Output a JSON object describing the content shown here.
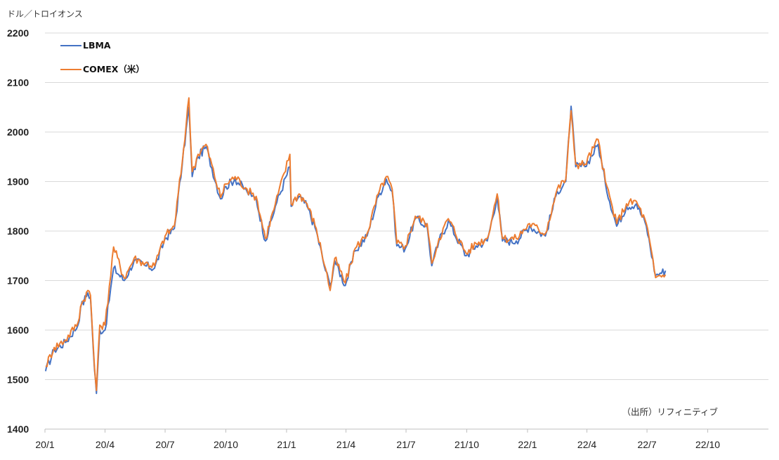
{
  "chart_data": {
    "type": "line",
    "unit_label": "ドル／トロイオンス",
    "source": "（出所）リフィニティブ",
    "ylim": [
      1400,
      2200
    ],
    "yticks": [
      "1400",
      "1500",
      "1600",
      "1700",
      "1800",
      "1900",
      "2000",
      "2100",
      "2200"
    ],
    "grid": true,
    "legend_position": "top-left",
    "x_ticks": [
      "20/1",
      "20/4",
      "20/7",
      "20/10",
      "21/1",
      "21/4",
      "21/7",
      "21/10",
      "22/1",
      "22/4",
      "22/7",
      "22/10"
    ],
    "x_range": [
      "2020-01",
      "2022-12"
    ],
    "colors": {
      "LBMA": "#4472C4",
      "COMEX": "#ED7D31",
      "grid": "#D9D9D9"
    },
    "series": [
      {
        "name": "LBMA",
        "color": "#4472C4",
        "x": [
          "2020-01-02",
          "2020-01-15",
          "2020-02-01",
          "2020-02-20",
          "2020-02-24",
          "2020-03-06",
          "2020-03-10",
          "2020-03-16",
          "2020-03-19",
          "2020-03-24",
          "2020-04-01",
          "2020-04-14",
          "2020-04-30",
          "2020-05-15",
          "2020-06-01",
          "2020-06-15",
          "2020-07-01",
          "2020-07-15",
          "2020-07-27",
          "2020-08-06",
          "2020-08-11",
          "2020-08-20",
          "2020-09-01",
          "2020-09-23",
          "2020-10-01",
          "2020-10-15",
          "2020-11-02",
          "2020-11-09",
          "2020-11-16",
          "2020-11-30",
          "2020-12-15",
          "2021-01-06",
          "2021-01-08",
          "2021-01-20",
          "2021-02-01",
          "2021-02-15",
          "2021-03-01",
          "2021-03-08",
          "2021-03-15",
          "2021-03-31",
          "2021-04-15",
          "2021-05-03",
          "2021-05-20",
          "2021-06-01",
          "2021-06-10",
          "2021-06-17",
          "2021-06-30",
          "2021-07-15",
          "2021-08-02",
          "2021-08-09",
          "2021-08-20",
          "2021-09-03",
          "2021-09-30",
          "2021-10-15",
          "2021-11-01",
          "2021-11-16",
          "2021-11-24",
          "2021-12-15",
          "2022-01-04",
          "2022-01-28",
          "2022-02-15",
          "2022-02-28",
          "2022-03-08",
          "2022-03-15",
          "2022-03-29",
          "2022-04-18",
          "2022-04-29",
          "2022-05-16",
          "2022-05-31",
          "2022-06-15",
          "2022-06-30",
          "2022-07-14",
          "2022-07-21",
          "2022-07-29"
        ],
        "values": [
          1517,
          1560,
          1575,
          1610,
          1645,
          1675,
          1665,
          1520,
          1472,
          1600,
          1600,
          1725,
          1700,
          1740,
          1730,
          1725,
          1785,
          1805,
          1935,
          2050,
          1910,
          1950,
          1970,
          1865,
          1890,
          1905,
          1880,
          1870,
          1865,
          1780,
          1850,
          1930,
          1850,
          1870,
          1850,
          1800,
          1720,
          1690,
          1740,
          1690,
          1760,
          1790,
          1870,
          1905,
          1880,
          1770,
          1765,
          1825,
          1810,
          1730,
          1780,
          1820,
          1750,
          1770,
          1780,
          1870,
          1780,
          1780,
          1810,
          1790,
          1880,
          1900,
          2052,
          1930,
          1930,
          1975,
          1895,
          1810,
          1850,
          1855,
          1810,
          1710,
          1715,
          1720
        ]
      },
      {
        "name": "COMEX（米）",
        "color": "#ED7D31",
        "x": [
          "2020-01-02",
          "2020-01-15",
          "2020-02-01",
          "2020-02-20",
          "2020-02-24",
          "2020-03-06",
          "2020-03-10",
          "2020-03-16",
          "2020-03-19",
          "2020-03-24",
          "2020-04-01",
          "2020-04-14",
          "2020-04-30",
          "2020-05-15",
          "2020-06-01",
          "2020-06-15",
          "2020-07-01",
          "2020-07-15",
          "2020-07-27",
          "2020-08-06",
          "2020-08-11",
          "2020-08-20",
          "2020-09-01",
          "2020-09-23",
          "2020-10-01",
          "2020-10-15",
          "2020-11-02",
          "2020-11-09",
          "2020-11-16",
          "2020-11-30",
          "2020-12-15",
          "2021-01-06",
          "2021-01-08",
          "2021-01-20",
          "2021-02-01",
          "2021-02-15",
          "2021-03-01",
          "2021-03-08",
          "2021-03-15",
          "2021-03-31",
          "2021-04-15",
          "2021-05-03",
          "2021-05-20",
          "2021-06-01",
          "2021-06-10",
          "2021-06-17",
          "2021-06-30",
          "2021-07-15",
          "2021-08-02",
          "2021-08-09",
          "2021-08-20",
          "2021-09-03",
          "2021-09-30",
          "2021-10-15",
          "2021-11-01",
          "2021-11-16",
          "2021-11-24",
          "2021-12-15",
          "2022-01-04",
          "2022-01-28",
          "2022-02-15",
          "2022-02-28",
          "2022-03-08",
          "2022-03-15",
          "2022-03-29",
          "2022-04-18",
          "2022-04-29",
          "2022-05-16",
          "2022-05-31",
          "2022-06-15",
          "2022-06-30",
          "2022-07-14",
          "2022-07-21",
          "2022-07-29"
        ],
        "values": [
          1527,
          1565,
          1580,
          1615,
          1648,
          1680,
          1670,
          1525,
          1478,
          1610,
          1610,
          1768,
          1705,
          1745,
          1735,
          1730,
          1790,
          1810,
          1940,
          2069,
          1920,
          1955,
          1975,
          1868,
          1895,
          1910,
          1885,
          1875,
          1870,
          1785,
          1855,
          1955,
          1855,
          1875,
          1855,
          1805,
          1725,
          1680,
          1745,
          1695,
          1765,
          1795,
          1875,
          1910,
          1885,
          1775,
          1770,
          1830,
          1815,
          1735,
          1785,
          1825,
          1755,
          1775,
          1785,
          1875,
          1785,
          1785,
          1815,
          1795,
          1885,
          1905,
          2043,
          1935,
          1935,
          1985,
          1900,
          1815,
          1855,
          1860,
          1815,
          1706,
          1710,
          1712
        ]
      }
    ]
  }
}
